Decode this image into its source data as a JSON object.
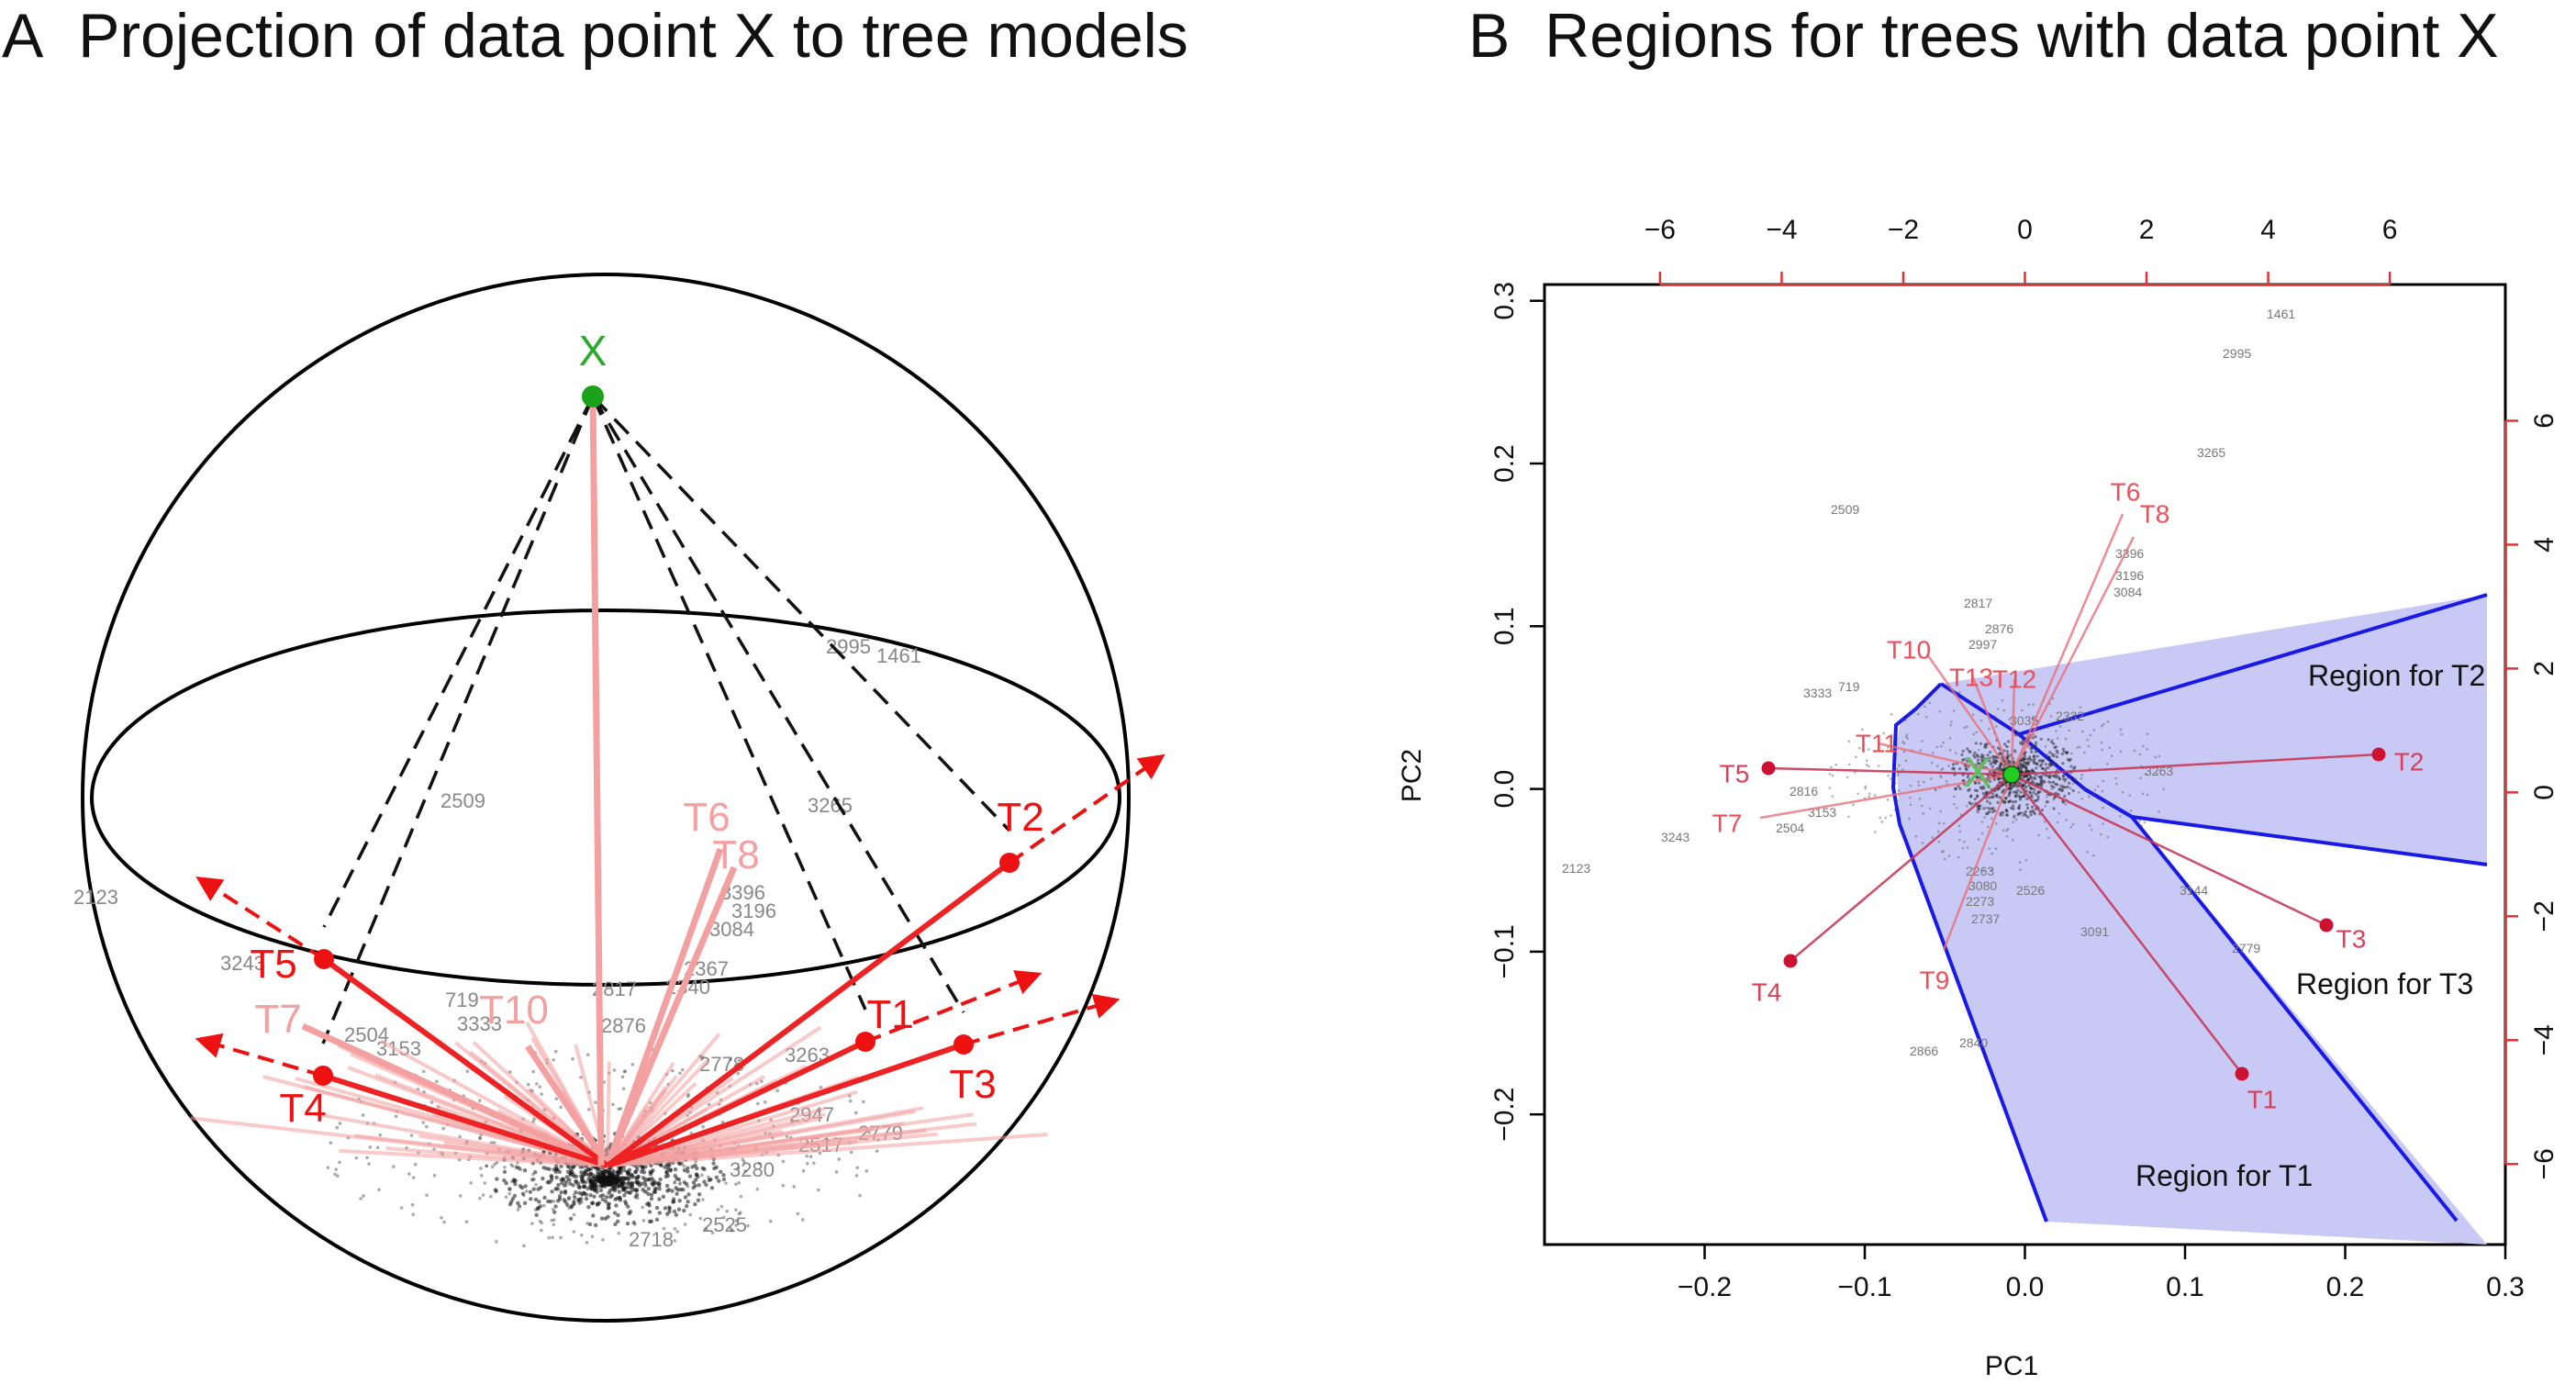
{
  "panel_a": {
    "letter": "A",
    "title": "Projection of data point X to tree models",
    "point_label": "X",
    "trees": [
      {
        "label": "T1",
        "dim": false
      },
      {
        "label": "T2",
        "dim": false
      },
      {
        "label": "T3",
        "dim": false
      },
      {
        "label": "T4",
        "dim": false
      },
      {
        "label": "T5",
        "dim": false
      },
      {
        "label": "T6",
        "dim": true
      },
      {
        "label": "T7",
        "dim": true
      },
      {
        "label": "T8",
        "dim": true
      },
      {
        "label": "T10",
        "dim": true
      }
    ],
    "sample_ids": [
      "2123",
      "3243",
      "2509",
      "2995",
      "1461",
      "3265",
      "3396",
      "3196",
      "3084",
      "2817",
      "2876",
      "719",
      "3333",
      "2504",
      "3153",
      "2340",
      "2367",
      "3263",
      "2778",
      "2947",
      "2779",
      "3280",
      "2525",
      "2718",
      "2517"
    ]
  },
  "panel_b": {
    "letter": "B",
    "title": "Regions for trees with data point X",
    "xlabel": "PC1",
    "ylabel": "PC2",
    "bottom_ticks": [
      "−0.2",
      "−0.1",
      "0.0",
      "0.1",
      "0.2",
      "0.3"
    ],
    "left_ticks": [
      "0.3",
      "0.2",
      "0.1",
      "0.0",
      "−0.1",
      "−0.2"
    ],
    "top_ticks": [
      "−6",
      "−4",
      "−2",
      "0",
      "2",
      "4",
      "6"
    ],
    "right_ticks": [
      "6",
      "4",
      "2",
      "0",
      "−2",
      "−4",
      "−6"
    ],
    "point_label": "X",
    "trees": [
      "T1",
      "T2",
      "T3",
      "T4",
      "T5",
      "T6",
      "T7",
      "T8",
      "T9",
      "T10",
      "T11",
      "T12",
      "T13"
    ],
    "regions": [
      "Region for T2",
      "Region for T3",
      "Region for T1"
    ],
    "sample_ids": [
      "1461",
      "2995",
      "3265",
      "2509",
      "3396",
      "3196",
      "3084",
      "2817",
      "2876",
      "2997",
      "3333",
      "719",
      "3263",
      "2816",
      "2504",
      "3153",
      "3243",
      "2123",
      "2263",
      "3080",
      "2273",
      "2737",
      "2526",
      "3091",
      "2779",
      "2866",
      "2840",
      "3144",
      "2332",
      "3035"
    ],
    "colors": {
      "region_fill": "#c9c9f5",
      "region_edge": "#1a1ae6",
      "tree": "#dd2233",
      "point": "#22aa22"
    }
  },
  "chart_data": {
    "type": "scatter",
    "title": "Regions for trees with data point X",
    "xlabel": "PC1",
    "ylabel": "PC2",
    "xlim": [
      -0.3,
      0.3
    ],
    "ylim": [
      -0.28,
      0.31
    ],
    "secondary_xlim": [
      -7.9,
      7.9
    ],
    "secondary_ylim": [
      -7.3,
      8.2
    ],
    "grid": false,
    "points": [
      {
        "name": "X",
        "x": 0.0,
        "y": 0.0
      },
      {
        "name": "T1",
        "x": 0.147,
        "y": -0.187
      },
      {
        "name": "T2",
        "x": 0.232,
        "y": 0.014
      },
      {
        "name": "T3",
        "x": 0.195,
        "y": -0.092
      },
      {
        "name": "T4",
        "x": -0.137,
        "y": -0.117
      },
      {
        "name": "T5",
        "x": -0.151,
        "y": 0.005
      }
    ],
    "regions": [
      "Region for T2",
      "Region for T3",
      "Region for T1"
    ]
  }
}
